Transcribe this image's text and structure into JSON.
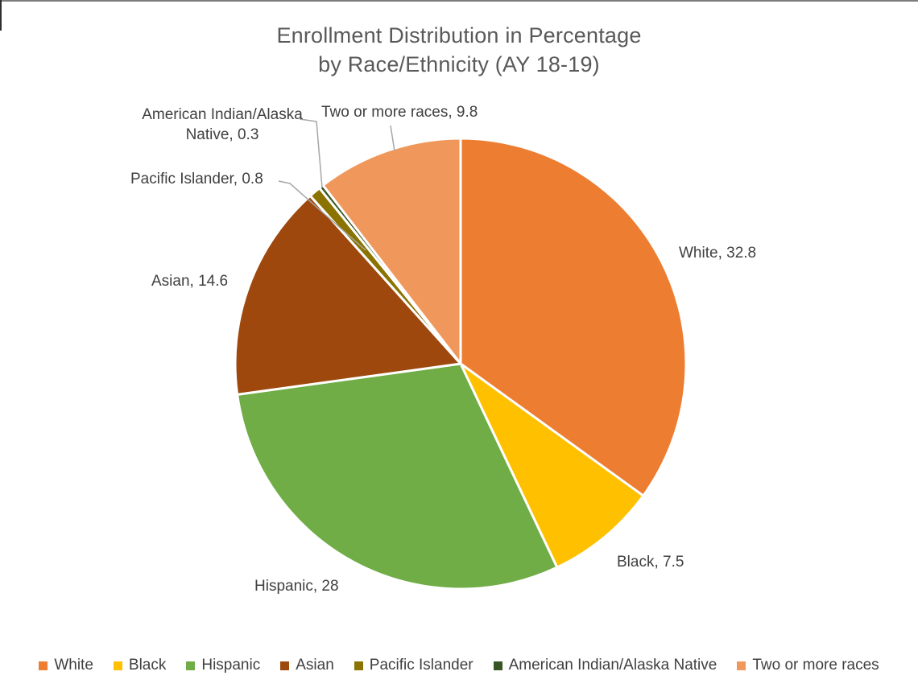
{
  "chart_data": {
    "type": "pie",
    "title": "Enrollment Distribution in Percentage by Race/Ethnicity (AY 18-19)",
    "title_lines": [
      "Enrollment Distribution in Percentage",
      "by Race/Ethnicity (AY 18-19)"
    ],
    "categories": [
      "White",
      "Black",
      "Hispanic",
      "Asian",
      "Pacific Islander",
      "American Indian/Alaska Native",
      "Two or more races"
    ],
    "values": [
      32.8,
      7.5,
      28,
      14.6,
      0.8,
      0.3,
      9.8
    ],
    "colors": [
      "#ED7D31",
      "#FFC000",
      "#70AD47",
      "#9E480E",
      "#8A7300",
      "#375623",
      "#F0985C"
    ],
    "start_angle_deg": 0,
    "direction": "clockwise",
    "slice_border_color": "#FFFFFF",
    "leader_line_color": "#A6A6A6",
    "title_color": "#595959",
    "label_color": "#404040",
    "data_labels": [
      "White, 32.8",
      "Black, 7.5",
      "Hispanic, 28",
      "Asian, 14.6",
      "Pacific Islander, 0.8",
      "American Indian/Alaska Native, 0.3",
      "Two or more races, 9.8"
    ],
    "legend": {
      "position": "bottom",
      "entries": [
        "White",
        "Black",
        "Hispanic",
        "Asian",
        "Pacific Islander",
        "American Indian/Alaska Native",
        "Two or more races"
      ]
    }
  }
}
